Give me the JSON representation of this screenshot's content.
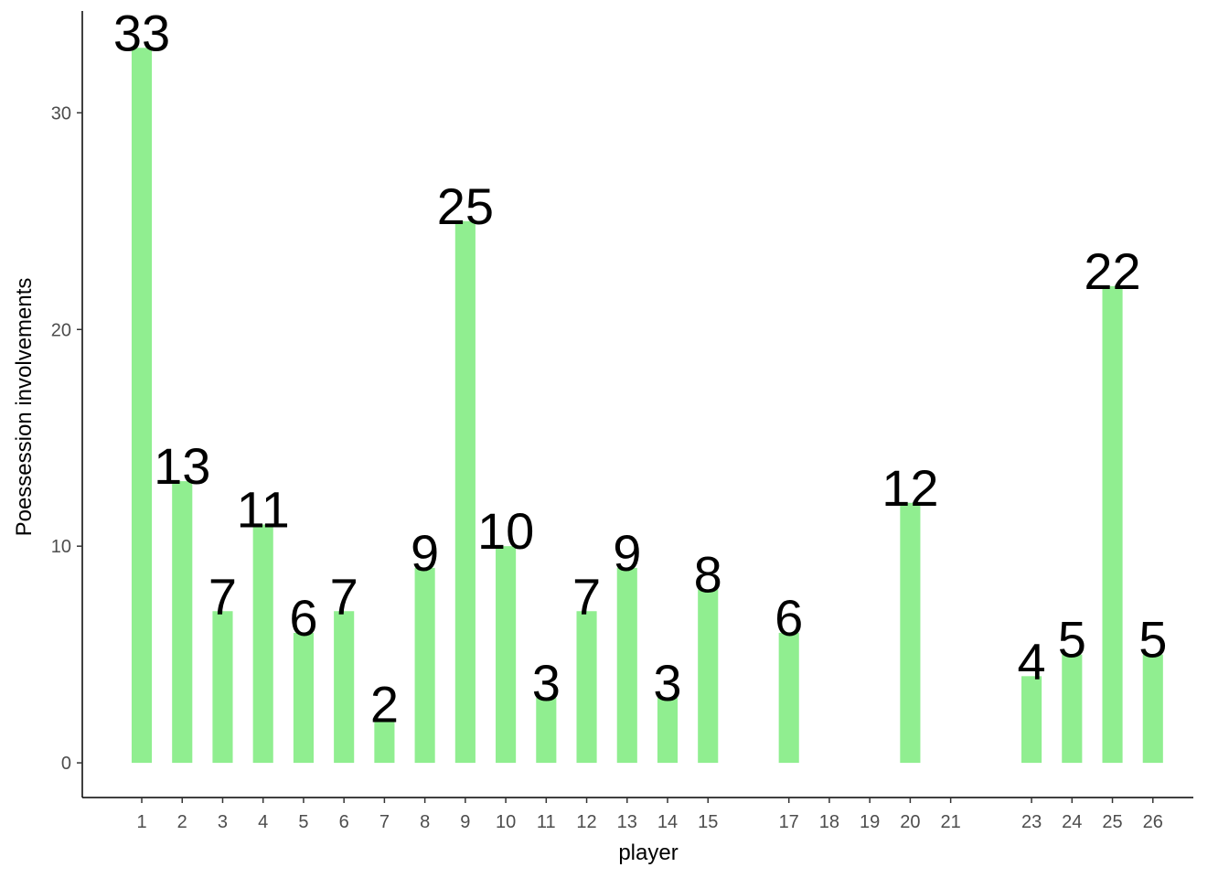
{
  "chart_data": {
    "type": "bar",
    "xlabel": "player",
    "ylabel": "Poessession involvements",
    "x": [
      1,
      2,
      3,
      4,
      5,
      6,
      7,
      8,
      9,
      10,
      11,
      12,
      13,
      14,
      15,
      17,
      20,
      23,
      24,
      25,
      26
    ],
    "values": [
      33,
      13,
      7,
      11,
      6,
      7,
      2,
      9,
      25,
      10,
      3,
      7,
      9,
      3,
      8,
      6,
      12,
      4,
      5,
      22,
      5
    ],
    "color": "#90ee90",
    "xlim": [
      -0.47,
      27
    ],
    "xticks": [
      1,
      2,
      3,
      4,
      5,
      6,
      7,
      8,
      9,
      10,
      11,
      12,
      13,
      14,
      15,
      17,
      18,
      19,
      20,
      21,
      23,
      24,
      25,
      26
    ],
    "ylim": [
      -1.6,
      34.7
    ],
    "yticks": [
      0,
      10,
      20,
      30
    ]
  }
}
